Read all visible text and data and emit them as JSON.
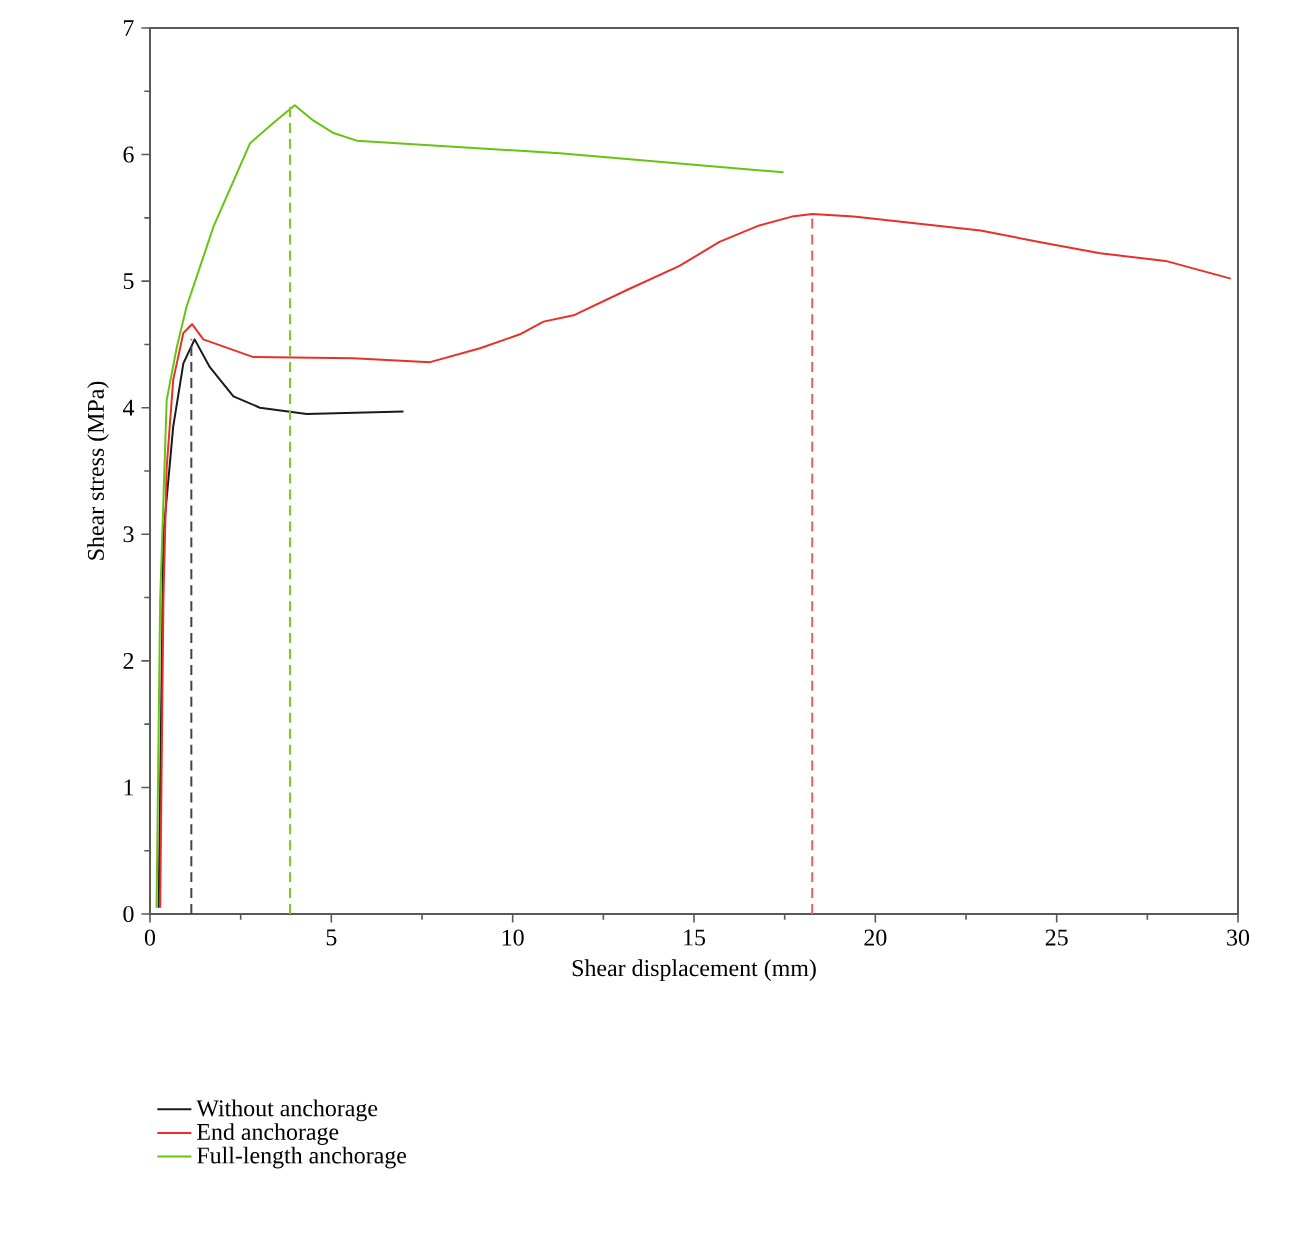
{
  "chart_data": {
    "type": "line",
    "xlabel": "Shear displacement (mm)",
    "ylabel": "Shear stress (MPa)",
    "xlim": [
      0,
      30
    ],
    "ylim": [
      0,
      7
    ],
    "xticks": [
      0,
      5,
      10,
      15,
      20,
      25,
      30
    ],
    "yticks": [
      0,
      1,
      2,
      3,
      4,
      5,
      6,
      7
    ],
    "legend": "bottom",
    "series": [
      {
        "name": "Without anchorage",
        "color": "#1a1a1a",
        "x": [
          0.24,
          0.37,
          0.64,
          0.92,
          1.23,
          1.65,
          2.3,
          3.03,
          4.32,
          6.99
        ],
        "values": [
          0.05,
          3.0,
          3.85,
          4.35,
          4.54,
          4.32,
          4.09,
          4.0,
          3.95,
          3.97
        ]
      },
      {
        "name": "End anchorage",
        "color": "#e8302a",
        "x": [
          0.28,
          0.37,
          0.46,
          0.64,
          0.92,
          1.16,
          1.47,
          2.85,
          5.6,
          7.72,
          9.1,
          10.2,
          10.85,
          11.68,
          13.15,
          14.6,
          15.7,
          16.8,
          17.7,
          18.26,
          19.4,
          22.9,
          24.7,
          26.2,
          28.0,
          29.8
        ],
        "values": [
          0.05,
          2.48,
          3.53,
          4.22,
          4.59,
          4.66,
          4.54,
          4.4,
          4.39,
          4.36,
          4.47,
          4.58,
          4.68,
          4.73,
          4.93,
          5.12,
          5.31,
          5.44,
          5.51,
          5.53,
          5.51,
          5.4,
          5.3,
          5.22,
          5.16,
          5.02
        ]
      },
      {
        "name": "Full-length anchorage",
        "color": "#66c410",
        "x": [
          0.18,
          0.28,
          0.46,
          0.74,
          1.01,
          1.75,
          2.76,
          3.4,
          3.99,
          4.5,
          5.06,
          5.7,
          11.3,
          17.47
        ],
        "values": [
          0.05,
          2.48,
          4.06,
          4.48,
          4.8,
          5.43,
          6.09,
          6.25,
          6.39,
          6.27,
          6.17,
          6.11,
          6.01,
          5.86
        ]
      },
      {
        "color": "#444444",
        "line_style": "dashed",
        "x": [
          1.14,
          1.14
        ],
        "values": [
          0,
          4.54
        ]
      },
      {
        "color": "#7ccc1a",
        "line_style": "dashed",
        "x": [
          3.86,
          3.86
        ],
        "values": [
          0,
          6.39
        ]
      },
      {
        "color": "#e8605a",
        "line_style": "dashed",
        "x": [
          18.26,
          18.26
        ],
        "values": [
          0,
          5.53
        ]
      }
    ]
  }
}
